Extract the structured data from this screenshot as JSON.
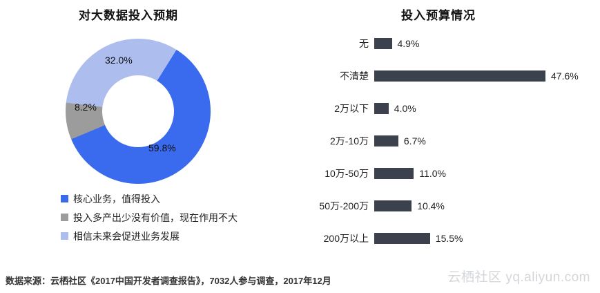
{
  "page": {
    "footer_source": "数据来源：云栖社区《2017中国开发者调查报告》，7032人参与调查，2017年12月",
    "watermark": "云栖社区 yq.aliyun.com"
  },
  "chart_data": [
    {
      "type": "pie",
      "donut": true,
      "title": "对大数据投入预期",
      "labels": [
        "核心业务，值得投入",
        "投入多产出少没有价值，现在作用不大",
        "相信未来会促进业务发展"
      ],
      "values": [
        59.8,
        8.2,
        32.0
      ],
      "value_labels": [
        "59.8%",
        "8.2%",
        "32.0%"
      ],
      "colors": [
        "#3a6bee",
        "#9c9c9c",
        "#adbdee"
      ],
      "start_angle_deg": 32,
      "legend_position": "bottom-left"
    },
    {
      "type": "bar",
      "orientation": "horizontal",
      "title": "投入预算情况",
      "categories": [
        "无",
        "不清楚",
        "2万以下",
        "2万-10万",
        "10万-50万",
        "50万-200万",
        "200万以上"
      ],
      "values": [
        4.9,
        47.6,
        4.0,
        6.7,
        11.0,
        10.4,
        15.5
      ],
      "value_labels": [
        "4.9%",
        "47.6%",
        "4.0%",
        "6.7%",
        "11.0%",
        "10.4%",
        "15.5%"
      ],
      "bar_color": "#3b424d",
      "xlim": [
        0,
        50
      ],
      "grid": false,
      "value_label_position": "right-of-bar"
    }
  ]
}
